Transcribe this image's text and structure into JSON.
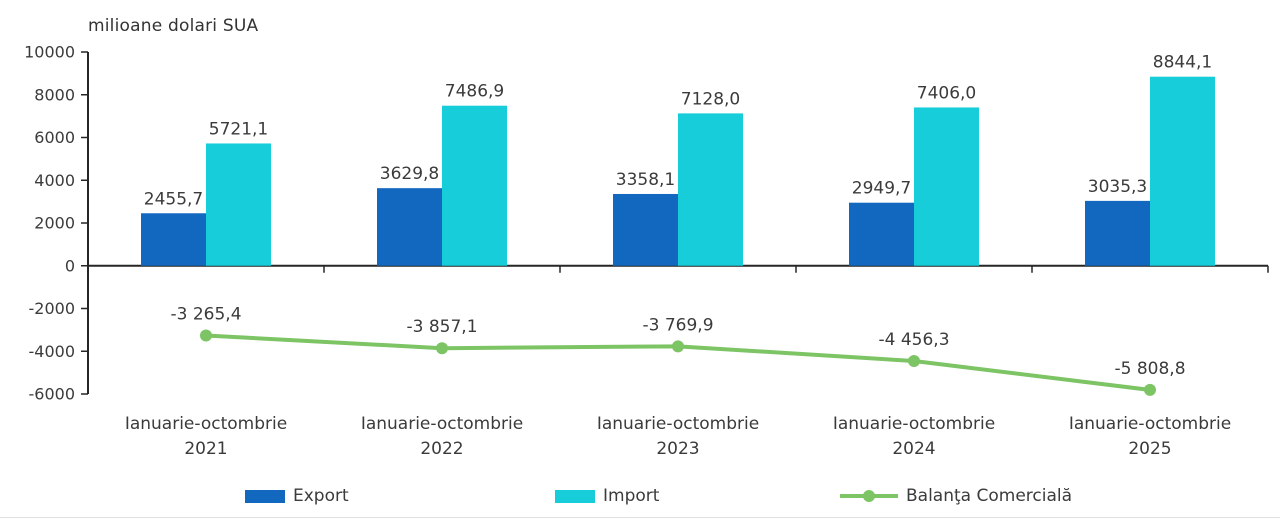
{
  "title": "milioane dolari SUA",
  "colors": {
    "export": "#1268bf",
    "import": "#17cdd9",
    "balance": "#7dc465",
    "axis": "#262626",
    "text": "#3b3b3b"
  },
  "chart_data": {
    "type": "bar",
    "title": "milioane dolari SUA",
    "xlabel": "",
    "ylabel": "milioane dolari SUA",
    "ylim": [
      -6000,
      10000
    ],
    "yticks": [
      10000,
      8000,
      6000,
      4000,
      2000,
      0,
      -2000,
      -4000,
      -6000
    ],
    "grid": false,
    "legend_position": "bottom",
    "category_line1": "Ianuarie-octombrie",
    "category_years": [
      "2021",
      "2022",
      "2023",
      "2024",
      "2025"
    ],
    "categories": [
      "Ianuarie-octombrie 2021",
      "Ianuarie-octombrie 2022",
      "Ianuarie-octombrie 2023",
      "Ianuarie-octombrie 2024",
      "Ianuarie-octombrie 2025"
    ],
    "series": [
      {
        "name": "Export",
        "type": "bar",
        "values": [
          2455.7,
          3629.8,
          3358.1,
          2949.7,
          3035.3
        ],
        "labels": [
          "2455,7",
          "3629,8",
          "3358,1",
          "2949,7",
          "3035,3"
        ]
      },
      {
        "name": "Import",
        "type": "bar",
        "values": [
          5721.1,
          7486.9,
          7128.0,
          7406.0,
          8844.1
        ],
        "labels": [
          "5721,1",
          "7486,9",
          "7128,0",
          "7406,0",
          "8844,1"
        ]
      },
      {
        "name": "Balanţa Comercială",
        "type": "line",
        "values": [
          -3265.4,
          -3857.1,
          -3769.9,
          -4456.3,
          -5808.8
        ],
        "labels": [
          "-3 265,4",
          "-3 857,1",
          "-3 769,9",
          "-4 456,3",
          "-5 808,8"
        ]
      }
    ]
  }
}
